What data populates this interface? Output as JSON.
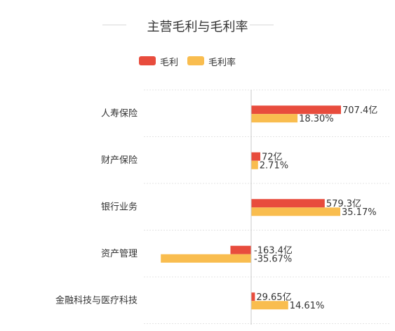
{
  "chart_data": {
    "type": "bar",
    "orientation": "horizontal",
    "title": "主营毛利与毛利率",
    "categories": [
      "人寿保险",
      "财产保险",
      "银行业务",
      "资产管理",
      "金融科技与医疗科技"
    ],
    "series": [
      {
        "name": "毛利",
        "color": "#e84c3d",
        "values": [
          707.4,
          72,
          579.3,
          -163.4,
          29.65
        ],
        "labels": [
          "707.4亿",
          "72亿",
          "579.3亿",
          "-163.4亿",
          "29.65亿"
        ]
      },
      {
        "name": "毛利率",
        "color": "#f9bd4f",
        "values": [
          18.3,
          2.71,
          35.17,
          -35.67,
          14.61
        ],
        "labels": [
          "18.30%",
          "2.71%",
          "35.17%",
          "-35.67%",
          "14.61%"
        ]
      }
    ],
    "legend_position": "top-center",
    "grid": "horizontal dashed separators",
    "xlabel": "",
    "ylabel": ""
  }
}
